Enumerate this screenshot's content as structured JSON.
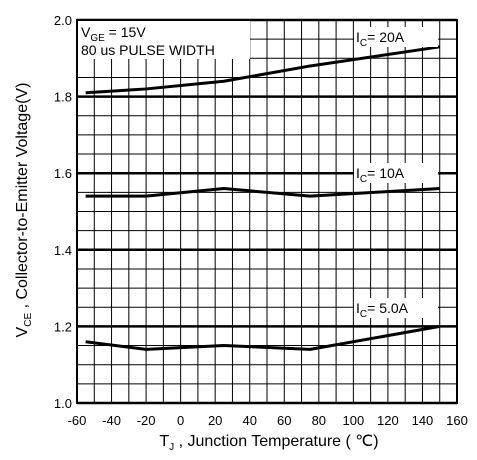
{
  "chart_data": {
    "type": "line",
    "xlabel": {
      "main": "T",
      "sub": "J",
      "rest": " , Junction Temperature ( ℃)"
    },
    "ylabel": {
      "main": "V",
      "sub": "CE",
      "rest": " , Collector-to-Emitter Voltage(V)"
    },
    "xlim": [
      -60,
      160
    ],
    "ylim": [
      1.0,
      2.0
    ],
    "x_ticks": [
      -60,
      -40,
      -20,
      0,
      20,
      40,
      60,
      80,
      100,
      120,
      140,
      160
    ],
    "x_tick_labels": [
      "-60",
      "-40",
      "-20",
      "0",
      "20",
      "40",
      "60",
      "80",
      "100",
      "120",
      "140",
      "160"
    ],
    "y_ticks": [
      1.0,
      1.2,
      1.4,
      1.6,
      1.8,
      2.0
    ],
    "y_tick_labels": [
      "1.0",
      "1.2",
      "1.4",
      "1.6",
      "1.8",
      "2.0"
    ],
    "grid": true,
    "annotations": {
      "vge": {
        "main": "V",
        "sub": "GE",
        "rest": " = 15V"
      },
      "pulse": "80 us PULSE WIDTH"
    },
    "series": [
      {
        "label": {
          "main": "I",
          "sub": "C",
          "rest": "=  20A"
        },
        "x": [
          -55,
          -20,
          25,
          75,
          150
        ],
        "y": [
          1.81,
          1.82,
          1.84,
          1.88,
          1.93
        ]
      },
      {
        "label": {
          "main": "I",
          "sub": "C",
          "rest": "=  10A"
        },
        "x": [
          -55,
          -20,
          25,
          75,
          150
        ],
        "y": [
          1.54,
          1.54,
          1.56,
          1.54,
          1.56
        ]
      },
      {
        "label": {
          "main": "I",
          "sub": "C",
          "rest": "=  5.0A"
        },
        "x": [
          -55,
          -20,
          25,
          75,
          150
        ],
        "y": [
          1.16,
          1.14,
          1.15,
          1.14,
          1.2
        ]
      }
    ]
  }
}
